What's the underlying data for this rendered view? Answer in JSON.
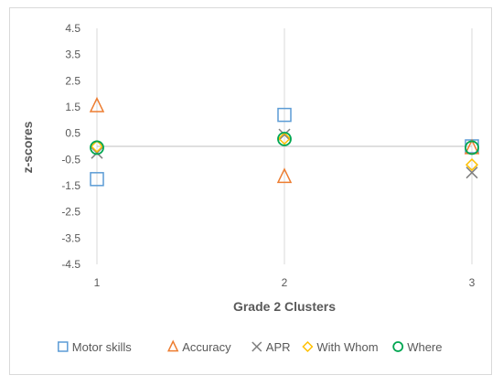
{
  "chart_data": {
    "type": "scatter",
    "title": "",
    "xlabel": "Grade 2 Clusters",
    "ylabel": "z-scores",
    "x_ticks": [
      "1",
      "2",
      "3"
    ],
    "x_values": [
      1,
      2,
      3
    ],
    "y_ticks": [
      "4.5",
      "3.5",
      "2.5",
      "1.5",
      "0.5",
      "-0.5",
      "-1.5",
      "-2.5",
      "-3.5",
      "-4.5"
    ],
    "ylim": [
      -4.5,
      4.5
    ],
    "xlim": [
      1,
      3
    ],
    "grid": "vertical",
    "legend_position": "bottom",
    "series": [
      {
        "name": "Motor skills",
        "marker": "square",
        "color": "#5b9bd5",
        "values": [
          -1.25,
          1.2,
          0.0
        ]
      },
      {
        "name": "Accuracy",
        "marker": "triangle",
        "color": "#ed7d31",
        "values": [
          1.55,
          -1.15,
          -0.05
        ]
      },
      {
        "name": "APR",
        "marker": "x",
        "color": "#7f7f7f",
        "values": [
          -0.25,
          0.45,
          -1.0
        ]
      },
      {
        "name": "With Whom",
        "marker": "diamond",
        "color": "#ffc000",
        "values": [
          0.0,
          0.3,
          -0.7
        ]
      },
      {
        "name": "Where",
        "marker": "circle",
        "color": "#00a651",
        "values": [
          -0.05,
          0.28,
          -0.05
        ]
      }
    ]
  }
}
